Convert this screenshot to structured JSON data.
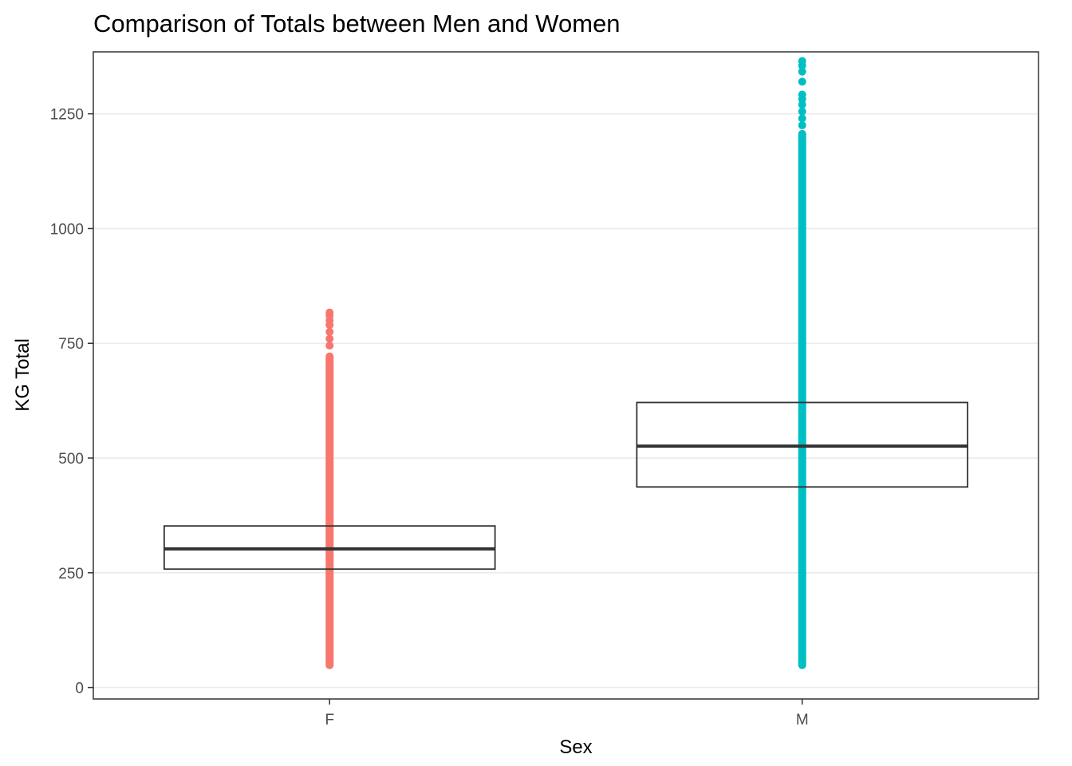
{
  "chart_data": {
    "type": "boxplot",
    "title": "Comparison of Totals between Men and Women",
    "xlabel": "Sex",
    "ylabel": "KG Total",
    "categories": [
      "F",
      "M"
    ],
    "ylim": [
      -25,
      1385
    ],
    "yticks": [
      0,
      250,
      500,
      750,
      1000,
      1250
    ],
    "grid": "horizontal",
    "legend": "none",
    "series": [
      {
        "category": "F",
        "color": "#F8766D",
        "q1": 258,
        "median": 302,
        "q3": 352,
        "points_range": [
          40,
          817
        ],
        "dense_range": [
          40,
          730
        ],
        "sparse_points": [
          745,
          760,
          775,
          790,
          800,
          810,
          817
        ]
      },
      {
        "category": "M",
        "color": "#00BFC4",
        "q1": 437,
        "median": 526,
        "q3": 621,
        "points_range": [
          40,
          1365
        ],
        "dense_range": [
          40,
          1215
        ],
        "sparse_points": [
          1225,
          1240,
          1255,
          1270,
          1282,
          1292,
          1320,
          1342,
          1355,
          1365
        ]
      }
    ]
  }
}
